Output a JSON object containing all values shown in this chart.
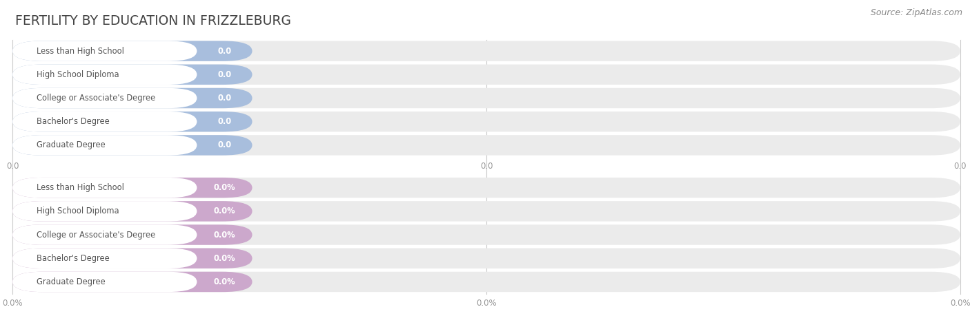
{
  "title": "FERTILITY BY EDUCATION IN FRIZZLEBURG",
  "source": "Source: ZipAtlas.com",
  "categories": [
    "Less than High School",
    "High School Diploma",
    "College or Associate's Degree",
    "Bachelor's Degree",
    "Graduate Degree"
  ],
  "top_labels": [
    "0.0",
    "0.0",
    "0.0",
    "0.0",
    "0.0"
  ],
  "bottom_labels": [
    "0.0%",
    "0.0%",
    "0.0%",
    "0.0%",
    "0.0%"
  ],
  "top_bar_color": "#a8bedd",
  "top_bar_bg": "#dce6f3",
  "top_stripe_bg": "#ebebeb",
  "bottom_bar_color": "#cca8cc",
  "bottom_bar_bg": "#ecdcec",
  "bottom_stripe_bg": "#ebebeb",
  "bar_text_color": "#ffffff",
  "label_text_color": "#555555",
  "axis_label_color": "#999999",
  "title_color": "#444444",
  "source_color": "#888888",
  "bg_color": "#ffffff",
  "grid_color": "#cccccc",
  "tick_label_top": [
    "0.0",
    "0.0",
    "0.0"
  ],
  "tick_label_bottom": [
    "0.0%",
    "0.0%",
    "0.0%"
  ]
}
